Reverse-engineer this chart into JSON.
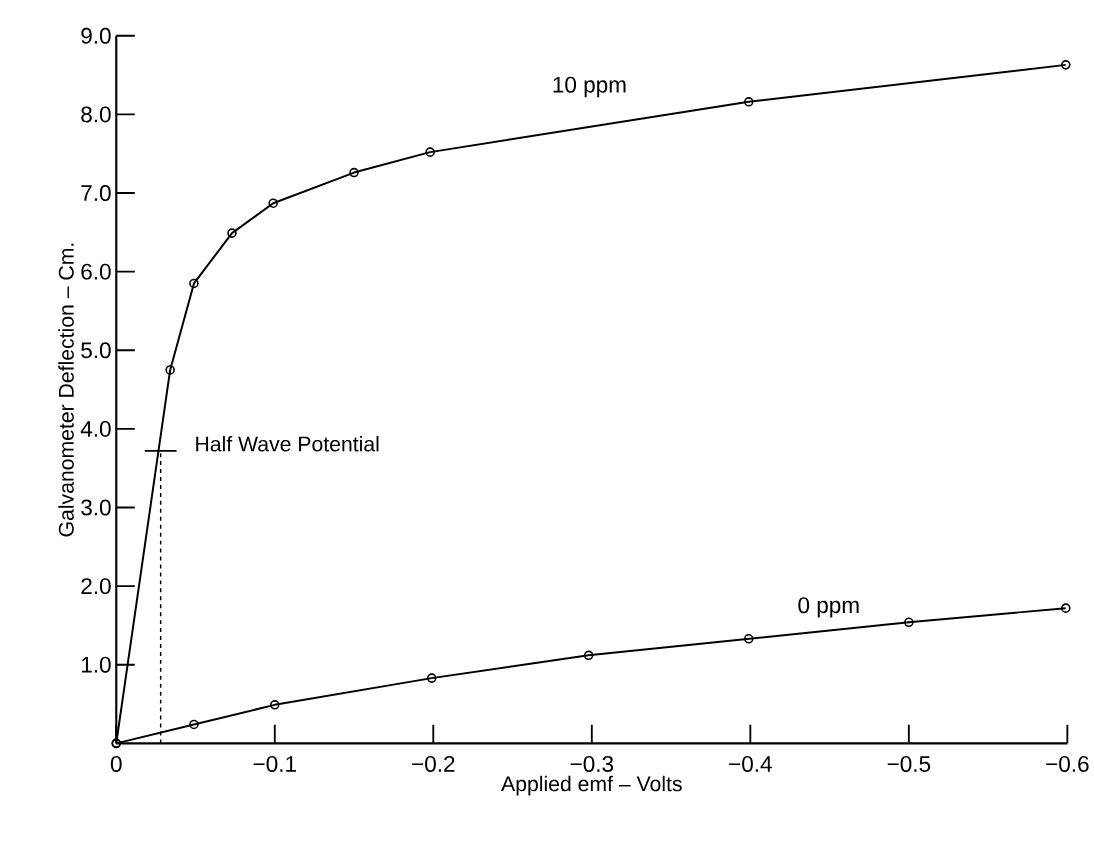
{
  "chart_data": {
    "type": "line",
    "xlabel": "Applied   emf  – Volts",
    "ylabel": "Galvanometer Deflection – Cm.",
    "xlim": [
      0,
      -0.6
    ],
    "ylim": [
      0,
      9
    ],
    "xticks": [
      {
        "value": 0,
        "label": "0"
      },
      {
        "value": -0.1,
        "label": "−0.1"
      },
      {
        "value": -0.2,
        "label": "−0.2"
      },
      {
        "value": -0.3,
        "label": "−0.3"
      },
      {
        "value": -0.4,
        "label": "−0.4"
      },
      {
        "value": -0.5,
        "label": "−0.5"
      },
      {
        "value": -0.6,
        "label": "−0.6"
      }
    ],
    "yticks": [
      {
        "value": 1,
        "label": "1.0"
      },
      {
        "value": 2,
        "label": "2.0"
      },
      {
        "value": 3,
        "label": "3.0"
      },
      {
        "value": 4,
        "label": "4.0"
      },
      {
        "value": 5,
        "label": "5.0"
      },
      {
        "value": 6,
        "label": "6.0"
      },
      {
        "value": 7,
        "label": "7.0"
      },
      {
        "value": 8,
        "label": "8.0"
      },
      {
        "value": 9,
        "label": "9.0"
      }
    ],
    "marker": "circle",
    "line_style": "solid",
    "series": [
      {
        "name": "10 ppm",
        "color": "#000000",
        "x": [
          0,
          -0.034,
          -0.049,
          -0.073,
          -0.099,
          -0.15,
          -0.198,
          -0.399,
          -0.599
        ],
        "values": [
          0,
          4.75,
          5.85,
          6.49,
          6.87,
          7.26,
          7.52,
          8.16,
          8.63
        ]
      },
      {
        "name": "0 ppm",
        "color": "#000000",
        "x": [
          0,
          -0.049,
          -0.1,
          -0.199,
          -0.298,
          -0.399,
          -0.5,
          -0.599
        ],
        "values": [
          0,
          0.24,
          0.49,
          0.83,
          1.12,
          1.33,
          1.54,
          1.72
        ]
      },
      {
        "color": "#000000",
        "line_style": "dashed",
        "marker": "none",
        "x": [
          -0.028,
          -0.028
        ],
        "values": [
          0,
          3.72
        ]
      }
    ],
    "annotations": [
      {
        "text": "Half Wave Potential",
        "x": -0.028,
        "y": 3.72
      }
    ]
  }
}
